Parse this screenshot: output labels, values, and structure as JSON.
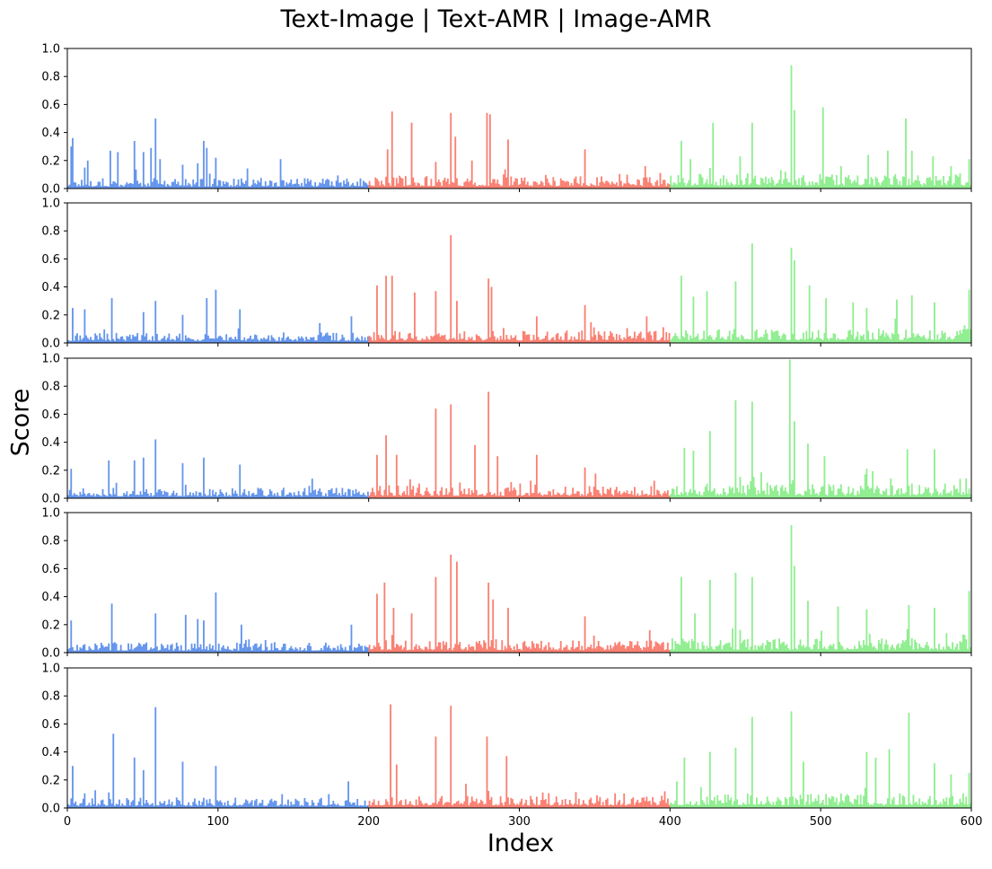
{
  "chart_data": {
    "type": "bar",
    "title": "Text-Image | Text-AMR | Image-AMR",
    "xlabel": "Index",
    "ylabel": "Score",
    "xlim": [
      0,
      600
    ],
    "ylim": [
      0,
      1.0
    ],
    "x_ticks": [
      "0",
      "100",
      "200",
      "300",
      "400",
      "500",
      "600"
    ],
    "y_ticks": [
      "0.0",
      "0.2",
      "0.4",
      "0.6",
      "0.8",
      "1.0"
    ],
    "x_tick_values": [
      0,
      100,
      200,
      300,
      400,
      500,
      600
    ],
    "y_tick_values": [
      0,
      0.2,
      0.4,
      0.6,
      0.8,
      1.0
    ],
    "segments": [
      {
        "range": [
          0,
          200
        ],
        "color": "#6495ED"
      },
      {
        "range": [
          200,
          400
        ],
        "color": "#FA8072"
      },
      {
        "range": [
          400,
          600
        ],
        "color": "#90EE90"
      }
    ],
    "baseline_scores": [
      0.05,
      0.06,
      0.07
    ],
    "panels": [
      {
        "peaks": [
          [
            2,
            0.3
          ],
          [
            3,
            0.36
          ],
          [
            11,
            0.15
          ],
          [
            13,
            0.2
          ],
          [
            28,
            0.27
          ],
          [
            33,
            0.26
          ],
          [
            44,
            0.34
          ],
          [
            50,
            0.26
          ],
          [
            55,
            0.29
          ],
          [
            58,
            0.5
          ],
          [
            61,
            0.21
          ],
          [
            76,
            0.17
          ],
          [
            86,
            0.18
          ],
          [
            90,
            0.34
          ],
          [
            92,
            0.29
          ],
          [
            98,
            0.22
          ],
          [
            141,
            0.21
          ],
          [
            212,
            0.28
          ],
          [
            215,
            0.55
          ],
          [
            228,
            0.47
          ],
          [
            244,
            0.19
          ],
          [
            254,
            0.54
          ],
          [
            257,
            0.37
          ],
          [
            268,
            0.2
          ],
          [
            278,
            0.54
          ],
          [
            280,
            0.53
          ],
          [
            292,
            0.35
          ],
          [
            343,
            0.28
          ],
          [
            383,
            0.16
          ],
          [
            407,
            0.34
          ],
          [
            413,
            0.21
          ],
          [
            428,
            0.47
          ],
          [
            446,
            0.23
          ],
          [
            454,
            0.47
          ],
          [
            480,
            0.88
          ],
          [
            482,
            0.56
          ],
          [
            501,
            0.58
          ],
          [
            513,
            0.16
          ],
          [
            531,
            0.24
          ],
          [
            544,
            0.27
          ],
          [
            556,
            0.5
          ],
          [
            560,
            0.27
          ],
          [
            574,
            0.23
          ],
          [
            586,
            0.16
          ],
          [
            598,
            0.21
          ]
        ]
      },
      {
        "peaks": [
          [
            3,
            0.25
          ],
          [
            11,
            0.24
          ],
          [
            29,
            0.32
          ],
          [
            50,
            0.22
          ],
          [
            58,
            0.3
          ],
          [
            76,
            0.2
          ],
          [
            92,
            0.32
          ],
          [
            98,
            0.38
          ],
          [
            114,
            0.24
          ],
          [
            188,
            0.19
          ],
          [
            205,
            0.41
          ],
          [
            211,
            0.48
          ],
          [
            215,
            0.48
          ],
          [
            230,
            0.36
          ],
          [
            244,
            0.37
          ],
          [
            254,
            0.77
          ],
          [
            258,
            0.3
          ],
          [
            279,
            0.46
          ],
          [
            281,
            0.4
          ],
          [
            311,
            0.19
          ],
          [
            343,
            0.27
          ],
          [
            384,
            0.19
          ],
          [
            407,
            0.48
          ],
          [
            415,
            0.33
          ],
          [
            424,
            0.37
          ],
          [
            443,
            0.44
          ],
          [
            454,
            0.71
          ],
          [
            480,
            0.68
          ],
          [
            482,
            0.59
          ],
          [
            492,
            0.41
          ],
          [
            503,
            0.32
          ],
          [
            521,
            0.29
          ],
          [
            530,
            0.25
          ],
          [
            550,
            0.31
          ],
          [
            560,
            0.34
          ],
          [
            575,
            0.29
          ],
          [
            598,
            0.38
          ]
        ]
      },
      {
        "peaks": [
          [
            2,
            0.21
          ],
          [
            27,
            0.27
          ],
          [
            44,
            0.27
          ],
          [
            50,
            0.29
          ],
          [
            58,
            0.42
          ],
          [
            76,
            0.25
          ],
          [
            90,
            0.29
          ],
          [
            114,
            0.24
          ],
          [
            162,
            0.14
          ],
          [
            205,
            0.31
          ],
          [
            211,
            0.45
          ],
          [
            218,
            0.31
          ],
          [
            244,
            0.64
          ],
          [
            254,
            0.67
          ],
          [
            270,
            0.38
          ],
          [
            279,
            0.76
          ],
          [
            285,
            0.3
          ],
          [
            311,
            0.31
          ],
          [
            343,
            0.22
          ],
          [
            409,
            0.36
          ],
          [
            415,
            0.34
          ],
          [
            426,
            0.48
          ],
          [
            443,
            0.7
          ],
          [
            454,
            0.69
          ],
          [
            479,
            0.99
          ],
          [
            482,
            0.55
          ],
          [
            491,
            0.39
          ],
          [
            502,
            0.3
          ],
          [
            530,
            0.21
          ],
          [
            557,
            0.35
          ],
          [
            575,
            0.35
          ]
        ]
      },
      {
        "peaks": [
          [
            2,
            0.23
          ],
          [
            29,
            0.35
          ],
          [
            58,
            0.28
          ],
          [
            78,
            0.27
          ],
          [
            86,
            0.24
          ],
          [
            90,
            0.23
          ],
          [
            98,
            0.43
          ],
          [
            115,
            0.2
          ],
          [
            188,
            0.2
          ],
          [
            205,
            0.42
          ],
          [
            210,
            0.5
          ],
          [
            216,
            0.32
          ],
          [
            228,
            0.28
          ],
          [
            244,
            0.54
          ],
          [
            254,
            0.7
          ],
          [
            258,
            0.65
          ],
          [
            279,
            0.5
          ],
          [
            282,
            0.38
          ],
          [
            292,
            0.32
          ],
          [
            343,
            0.26
          ],
          [
            386,
            0.16
          ],
          [
            407,
            0.54
          ],
          [
            416,
            0.28
          ],
          [
            426,
            0.52
          ],
          [
            443,
            0.57
          ],
          [
            454,
            0.54
          ],
          [
            480,
            0.91
          ],
          [
            482,
            0.62
          ],
          [
            491,
            0.37
          ],
          [
            511,
            0.33
          ],
          [
            530,
            0.31
          ],
          [
            558,
            0.34
          ],
          [
            575,
            0.32
          ],
          [
            598,
            0.44
          ]
        ]
      },
      {
        "peaks": [
          [
            3,
            0.3
          ],
          [
            30,
            0.53
          ],
          [
            44,
            0.36
          ],
          [
            50,
            0.27
          ],
          [
            58,
            0.72
          ],
          [
            76,
            0.33
          ],
          [
            98,
            0.3
          ],
          [
            186,
            0.19
          ],
          [
            214,
            0.74
          ],
          [
            218,
            0.31
          ],
          [
            244,
            0.51
          ],
          [
            254,
            0.73
          ],
          [
            278,
            0.51
          ],
          [
            291,
            0.37
          ],
          [
            404,
            0.19
          ],
          [
            409,
            0.36
          ],
          [
            426,
            0.4
          ],
          [
            443,
            0.43
          ],
          [
            454,
            0.65
          ],
          [
            480,
            0.69
          ],
          [
            488,
            0.33
          ],
          [
            530,
            0.4
          ],
          [
            536,
            0.36
          ],
          [
            545,
            0.42
          ],
          [
            558,
            0.68
          ],
          [
            575,
            0.32
          ],
          [
            586,
            0.24
          ],
          [
            598,
            0.25
          ]
        ]
      }
    ]
  }
}
